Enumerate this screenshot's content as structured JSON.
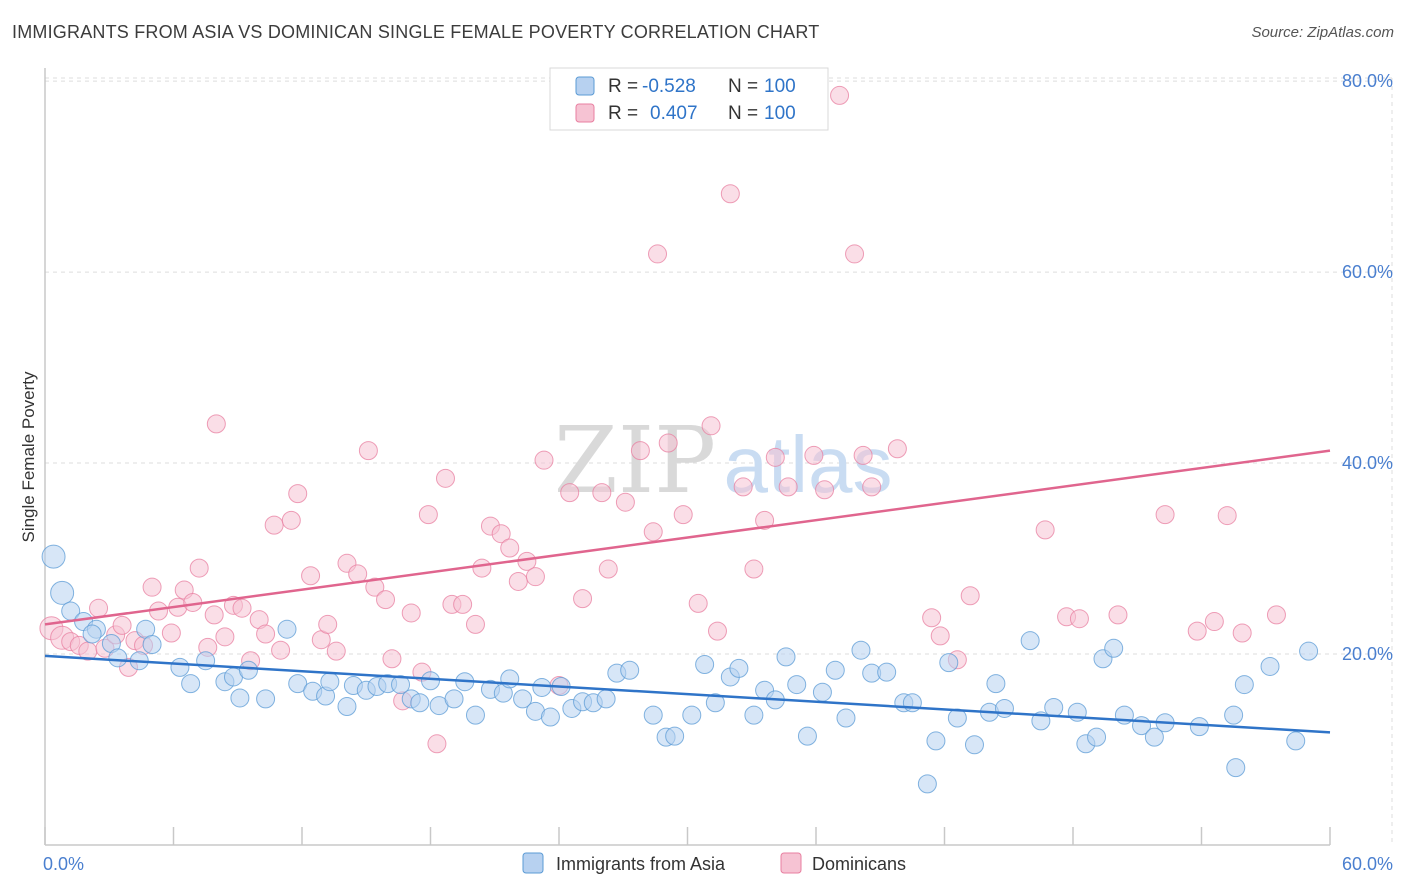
{
  "title": "IMMIGRANTS FROM ASIA VS DOMINICAN SINGLE FEMALE POVERTY CORRELATION CHART",
  "source": "Source: ZipAtlas.com",
  "watermark": {
    "zip": "ZIP",
    "atlas": "atlas"
  },
  "colors": {
    "blue": "#5b9bd5",
    "blue_fill": "#b7d1f0",
    "blue_line": "#2f74c8",
    "pink": "#e87fa0",
    "pink_fill": "#f6c3d3",
    "pink_line": "#e0658e",
    "axis_text": "#4a7fcf",
    "grid": "#dddddd"
  },
  "legend_stats": [
    {
      "r_label": "R =",
      "r_value": "-0.528",
      "n_label": "N =",
      "n_value": "100"
    },
    {
      "r_label": "R =",
      "r_value": "0.407",
      "n_label": "N =",
      "n_value": "100"
    }
  ],
  "chart_data": {
    "type": "scatter",
    "title": "IMMIGRANTS FROM ASIA VS DOMINICAN SINGLE FEMALE POVERTY CORRELATION CHART",
    "xlabel": "",
    "ylabel": "Single Female Poverty",
    "xlim": [
      0,
      60
    ],
    "ylim": [
      0,
      82
    ],
    "x_tick_labels": [
      "0.0%",
      "60.0%"
    ],
    "y_ticks": [
      20,
      40,
      60,
      80
    ],
    "y_tick_labels": [
      "20.0%",
      "40.0%",
      "60.0%",
      "80.0%"
    ],
    "grid": true,
    "legend_position": "bottom-center",
    "series": [
      {
        "name": "Immigrants from Asia",
        "trend": [
          [
            0,
            19.8
          ],
          [
            60,
            11.8
          ]
        ],
        "points": [
          [
            0.4,
            30.2
          ],
          [
            0.8,
            26.4
          ],
          [
            1.2,
            24.5
          ],
          [
            1.8,
            23.4
          ],
          [
            2.4,
            22.6
          ],
          [
            2.2,
            22.1
          ],
          [
            3.1,
            21.1
          ],
          [
            3.4,
            19.6
          ],
          [
            4.7,
            22.6
          ],
          [
            4.4,
            19.3
          ],
          [
            5.0,
            21.0
          ],
          [
            6.3,
            18.6
          ],
          [
            6.8,
            16.9
          ],
          [
            7.5,
            19.3
          ],
          [
            8.4,
            17.1
          ],
          [
            8.8,
            17.6
          ],
          [
            9.1,
            15.4
          ],
          [
            9.5,
            18.3
          ],
          [
            10.3,
            15.3
          ],
          [
            11.3,
            22.6
          ],
          [
            11.8,
            16.9
          ],
          [
            12.5,
            16.1
          ],
          [
            13.1,
            15.6
          ],
          [
            13.3,
            17.1
          ],
          [
            14.1,
            14.5
          ],
          [
            14.4,
            16.7
          ],
          [
            15.0,
            16.2
          ],
          [
            15.5,
            16.6
          ],
          [
            16.0,
            16.9
          ],
          [
            16.6,
            16.8
          ],
          [
            17.1,
            15.3
          ],
          [
            17.5,
            14.9
          ],
          [
            18.0,
            17.2
          ],
          [
            18.4,
            14.6
          ],
          [
            19.1,
            15.3
          ],
          [
            19.6,
            17.1
          ],
          [
            20.1,
            13.6
          ],
          [
            20.8,
            16.3
          ],
          [
            21.4,
            15.9
          ],
          [
            21.7,
            17.4
          ],
          [
            22.3,
            15.3
          ],
          [
            22.9,
            14.0
          ],
          [
            23.2,
            16.5
          ],
          [
            23.6,
            13.4
          ],
          [
            24.1,
            16.6
          ],
          [
            24.6,
            14.3
          ],
          [
            25.1,
            15.0
          ],
          [
            25.6,
            14.9
          ],
          [
            26.2,
            15.3
          ],
          [
            26.7,
            18.0
          ],
          [
            27.3,
            18.3
          ],
          [
            28.4,
            13.6
          ],
          [
            29.0,
            11.3
          ],
          [
            29.4,
            11.4
          ],
          [
            30.2,
            13.6
          ],
          [
            30.8,
            18.9
          ],
          [
            31.3,
            14.9
          ],
          [
            32.0,
            17.6
          ],
          [
            32.4,
            18.5
          ],
          [
            33.1,
            13.6
          ],
          [
            33.6,
            16.2
          ],
          [
            34.1,
            15.2
          ],
          [
            34.6,
            19.7
          ],
          [
            35.1,
            16.8
          ],
          [
            35.6,
            11.4
          ],
          [
            36.3,
            16.0
          ],
          [
            36.9,
            18.3
          ],
          [
            37.4,
            13.3
          ],
          [
            38.1,
            20.4
          ],
          [
            38.6,
            18.0
          ],
          [
            39.3,
            18.1
          ],
          [
            40.1,
            14.9
          ],
          [
            40.5,
            14.9
          ],
          [
            41.2,
            6.4
          ],
          [
            41.6,
            10.9
          ],
          [
            42.2,
            19.1
          ],
          [
            42.6,
            13.3
          ],
          [
            43.4,
            10.5
          ],
          [
            44.1,
            13.9
          ],
          [
            44.4,
            16.9
          ],
          [
            44.8,
            14.3
          ],
          [
            46.0,
            21.4
          ],
          [
            46.5,
            13.0
          ],
          [
            47.1,
            14.4
          ],
          [
            48.2,
            13.9
          ],
          [
            48.6,
            10.6
          ],
          [
            49.1,
            11.3
          ],
          [
            49.4,
            19.5
          ],
          [
            49.9,
            20.6
          ],
          [
            50.4,
            13.6
          ],
          [
            51.2,
            12.5
          ],
          [
            51.8,
            11.3
          ],
          [
            52.3,
            12.8
          ],
          [
            53.9,
            12.4
          ],
          [
            55.5,
            13.6
          ],
          [
            55.6,
            8.1
          ],
          [
            56.0,
            16.8
          ],
          [
            57.2,
            18.7
          ],
          [
            58.4,
            10.9
          ],
          [
            59.0,
            20.3
          ]
        ]
      },
      {
        "name": "Dominicans",
        "trend": [
          [
            0,
            23.1
          ],
          [
            60,
            41.3
          ]
        ],
        "points": [
          [
            0.3,
            22.7
          ],
          [
            0.8,
            21.7
          ],
          [
            1.2,
            21.3
          ],
          [
            1.6,
            20.9
          ],
          [
            2.0,
            20.3
          ],
          [
            2.5,
            24.8
          ],
          [
            2.8,
            20.6
          ],
          [
            3.3,
            22.0
          ],
          [
            3.6,
            23.0
          ],
          [
            3.9,
            18.6
          ],
          [
            4.2,
            21.4
          ],
          [
            4.6,
            20.9
          ],
          [
            5.0,
            27.0
          ],
          [
            5.3,
            24.5
          ],
          [
            5.9,
            22.2
          ],
          [
            6.2,
            24.9
          ],
          [
            6.5,
            26.7
          ],
          [
            6.9,
            25.4
          ],
          [
            7.2,
            29.0
          ],
          [
            7.6,
            20.7
          ],
          [
            7.9,
            24.1
          ],
          [
            8.0,
            44.1
          ],
          [
            8.4,
            21.8
          ],
          [
            8.8,
            25.1
          ],
          [
            9.2,
            24.8
          ],
          [
            9.6,
            19.3
          ],
          [
            10.0,
            23.6
          ],
          [
            10.3,
            22.1
          ],
          [
            10.7,
            33.5
          ],
          [
            11.0,
            20.4
          ],
          [
            11.5,
            34.0
          ],
          [
            11.8,
            36.8
          ],
          [
            12.4,
            28.2
          ],
          [
            12.9,
            21.5
          ],
          [
            13.2,
            23.1
          ],
          [
            13.6,
            20.3
          ],
          [
            14.1,
            29.5
          ],
          [
            14.6,
            28.4
          ],
          [
            15.1,
            41.3
          ],
          [
            15.4,
            27.0
          ],
          [
            15.9,
            25.7
          ],
          [
            16.2,
            19.5
          ],
          [
            16.7,
            15.1
          ],
          [
            17.1,
            24.3
          ],
          [
            17.6,
            18.1
          ],
          [
            17.9,
            34.6
          ],
          [
            18.3,
            10.6
          ],
          [
            18.7,
            38.4
          ],
          [
            19.0,
            25.2
          ],
          [
            19.5,
            25.2
          ],
          [
            20.1,
            23.1
          ],
          [
            20.4,
            29.0
          ],
          [
            20.8,
            33.4
          ],
          [
            21.3,
            32.6
          ],
          [
            21.7,
            31.1
          ],
          [
            22.1,
            27.6
          ],
          [
            22.5,
            29.7
          ],
          [
            22.9,
            28.1
          ],
          [
            23.3,
            40.3
          ],
          [
            24.0,
            16.7
          ],
          [
            24.5,
            36.9
          ],
          [
            25.1,
            25.8
          ],
          [
            26.0,
            36.9
          ],
          [
            26.3,
            28.9
          ],
          [
            27.1,
            35.9
          ],
          [
            27.8,
            41.3
          ],
          [
            28.4,
            32.8
          ],
          [
            28.6,
            61.9
          ],
          [
            29.1,
            42.1
          ],
          [
            29.8,
            34.6
          ],
          [
            30.5,
            25.3
          ],
          [
            31.1,
            43.9
          ],
          [
            31.4,
            22.4
          ],
          [
            32.0,
            68.2
          ],
          [
            32.6,
            37.5
          ],
          [
            33.1,
            28.9
          ],
          [
            33.6,
            34.0
          ],
          [
            34.1,
            40.6
          ],
          [
            34.7,
            37.5
          ],
          [
            35.9,
            40.8
          ],
          [
            36.4,
            37.2
          ],
          [
            37.1,
            78.5
          ],
          [
            37.8,
            61.9
          ],
          [
            38.2,
            40.8
          ],
          [
            38.6,
            37.5
          ],
          [
            39.8,
            41.5
          ],
          [
            41.4,
            23.8
          ],
          [
            41.8,
            21.9
          ],
          [
            42.6,
            19.4
          ],
          [
            43.2,
            26.1
          ],
          [
            46.7,
            33.0
          ],
          [
            47.7,
            23.9
          ],
          [
            48.3,
            23.7
          ],
          [
            50.1,
            24.1
          ],
          [
            52.3,
            34.6
          ],
          [
            53.8,
            22.4
          ],
          [
            54.6,
            23.4
          ],
          [
            55.2,
            34.5
          ],
          [
            55.9,
            22.2
          ],
          [
            57.5,
            24.1
          ]
        ]
      }
    ]
  }
}
